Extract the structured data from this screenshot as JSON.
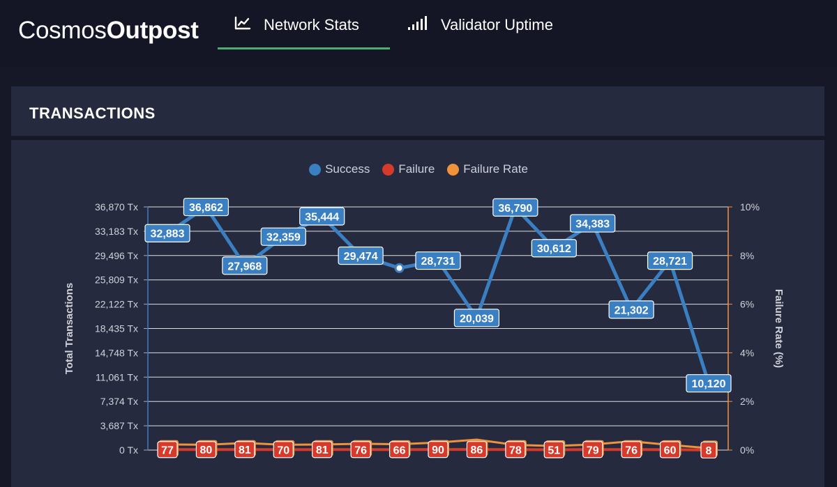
{
  "brand": {
    "light": "Cosmos",
    "bold": "Outpost"
  },
  "nav": {
    "tabs": [
      {
        "label": "Network Stats",
        "icon": "line-chart-icon",
        "active": true
      },
      {
        "label": "Validator Uptime",
        "icon": "signal-bars-icon",
        "active": false
      }
    ],
    "active_color": "#4caf72"
  },
  "panel": {
    "title": "TRANSACTIONS"
  },
  "colors": {
    "success": "#3a7fc1",
    "failure": "#d53a2a",
    "failure_rate": "#f0923a",
    "grid": "#ffffff"
  },
  "chart_data": {
    "type": "line",
    "legend": [
      {
        "name": "Success",
        "color": "#3a7fc1"
      },
      {
        "name": "Failure",
        "color": "#d53a2a"
      },
      {
        "name": "Failure Rate",
        "color": "#f0923a"
      }
    ],
    "ylabel": "Total Transactions",
    "y2label": "Failure Rate (%)",
    "ylim": [
      0,
      36870
    ],
    "y2lim": [
      0,
      10
    ],
    "yticks": [
      "0 Tx",
      "3,687 Tx",
      "7,374 Tx",
      "11,061 Tx",
      "14,748 Tx",
      "18,435 Tx",
      "22,122 Tx",
      "25,809 Tx",
      "29,496 Tx",
      "33,183 Tx",
      "36,870 Tx"
    ],
    "y2ticks": [
      "0%",
      "2%",
      "4%",
      "6%",
      "8%",
      "10%"
    ],
    "series": [
      {
        "name": "Success",
        "values": [
          32883,
          36862,
          27968,
          32359,
          35444,
          29474,
          27600,
          28731,
          20039,
          36790,
          30612,
          34383,
          21302,
          28721,
          10120
        ],
        "labels": [
          "32,883",
          "36,862",
          "27,968",
          "32,359",
          "35,444",
          "29,474",
          "",
          "28,731",
          "20,039",
          "36,790",
          "30,612",
          "34,383",
          "21,302",
          "28,721",
          "10,120"
        ]
      },
      {
        "name": "Failure",
        "values": [
          77,
          80,
          81,
          70,
          81,
          76,
          66,
          90,
          86,
          78,
          51,
          79,
          76,
          60,
          8
        ],
        "labels": [
          "77",
          "80",
          "81",
          "70",
          "81",
          "76",
          "66",
          "90",
          "86",
          "78",
          "51",
          "79",
          "76",
          "60",
          "8"
        ]
      },
      {
        "name": "Failure Rate",
        "values": [
          0.23,
          0.22,
          0.29,
          0.22,
          0.23,
          0.26,
          0.24,
          0.31,
          0.43,
          0.21,
          0.17,
          0.23,
          0.36,
          0.21,
          0.08
        ]
      }
    ]
  }
}
